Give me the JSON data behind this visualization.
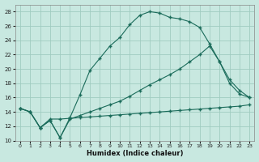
{
  "xlabel": "Humidex (Indice chaleur)",
  "bg_color": "#c8e8e0",
  "line_color": "#1a6b5a",
  "grid_color": "#a0ccc0",
  "xlim": [
    -0.5,
    23.5
  ],
  "ylim": [
    10,
    29
  ],
  "xticks": [
    0,
    1,
    2,
    3,
    4,
    5,
    6,
    7,
    8,
    9,
    10,
    11,
    12,
    13,
    14,
    15,
    16,
    17,
    18,
    19,
    20,
    21,
    22,
    23
  ],
  "yticks": [
    10,
    12,
    14,
    16,
    18,
    20,
    22,
    24,
    26,
    28
  ],
  "line1_x": [
    0,
    1,
    2,
    3,
    4,
    5,
    6,
    7,
    8,
    9,
    10,
    11,
    12,
    13,
    14,
    15,
    16,
    17,
    18,
    19,
    20,
    21,
    22,
    23
  ],
  "line1_y": [
    14.5,
    14.0,
    11.8,
    12.8,
    10.4,
    13.2,
    16.4,
    19.8,
    21.5,
    23.2,
    24.4,
    26.2,
    27.5,
    28.0,
    27.8,
    27.2,
    27.0,
    26.6,
    25.8,
    23.5,
    21.0,
    18.0,
    16.5,
    16.0
  ],
  "line2_x": [
    0,
    1,
    2,
    3,
    4,
    5,
    6,
    7,
    8,
    9,
    10,
    11,
    12,
    13,
    14,
    15,
    16,
    17,
    18,
    19,
    20,
    21,
    22,
    23
  ],
  "line2_y": [
    14.5,
    14.0,
    11.8,
    12.8,
    10.4,
    13.0,
    13.5,
    14.0,
    14.5,
    15.0,
    15.5,
    16.2,
    17.0,
    17.8,
    18.5,
    19.2,
    20.0,
    21.0,
    22.0,
    23.2,
    21.0,
    18.5,
    17.0,
    16.0
  ],
  "line3_x": [
    0,
    1,
    2,
    3,
    4,
    5,
    6,
    7,
    8,
    9,
    10,
    11,
    12,
    13,
    14,
    15,
    16,
    17,
    18,
    19,
    20,
    21,
    22,
    23
  ],
  "line3_y": [
    14.5,
    14.0,
    11.8,
    13.0,
    13.0,
    13.1,
    13.2,
    13.3,
    13.4,
    13.5,
    13.6,
    13.7,
    13.8,
    13.9,
    14.0,
    14.1,
    14.2,
    14.3,
    14.4,
    14.5,
    14.6,
    14.7,
    14.8,
    15.0
  ]
}
